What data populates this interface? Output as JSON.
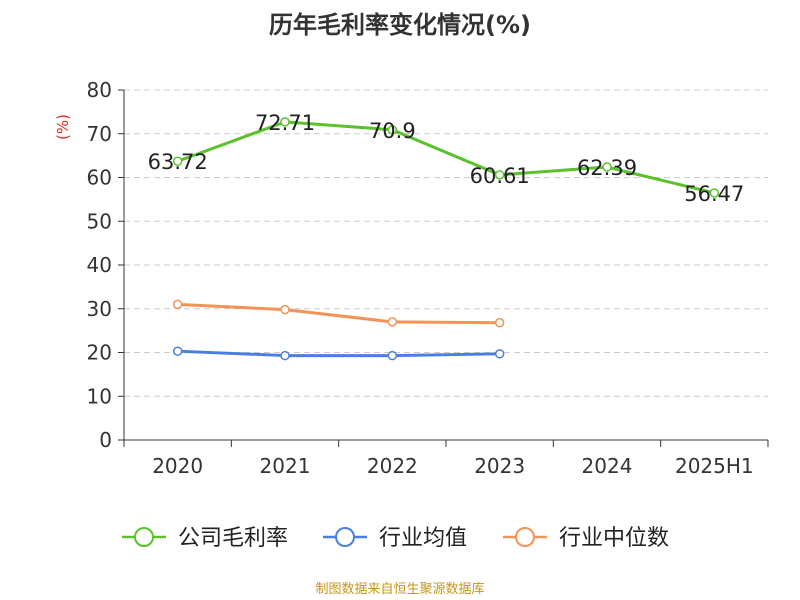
{
  "chart_data": {
    "type": "line",
    "title": "历年毛利率变化情况(%)",
    "ylabel": "(%)",
    "categories": [
      "2020",
      "2021",
      "2022",
      "2023",
      "2024",
      "2025H1"
    ],
    "ylim": [
      0,
      80
    ],
    "yticks": [
      0,
      10,
      20,
      30,
      40,
      50,
      60,
      70,
      80
    ],
    "grid": true,
    "legend_position": "bottom",
    "series": [
      {
        "name": "公司毛利率",
        "color": "#5cc22c",
        "values": [
          63.72,
          72.71,
          70.9,
          60.61,
          62.39,
          56.47
        ],
        "labels": [
          "63.72",
          "72.71",
          "70.9",
          "60.61",
          "62.39",
          "56.47"
        ]
      },
      {
        "name": "行业均值",
        "color": "#4a7fe0",
        "values": [
          20.3,
          19.3,
          19.3,
          19.7,
          null,
          null
        ]
      },
      {
        "name": "行业中位数",
        "color": "#f59258",
        "values": [
          31.0,
          29.8,
          27.0,
          26.8,
          null,
          null
        ]
      }
    ]
  },
  "footer": "制图数据来自恒生聚源数据库",
  "colors": {
    "axis": "#333333",
    "grid": "#cccccc",
    "ylabel": "#e0261f"
  }
}
